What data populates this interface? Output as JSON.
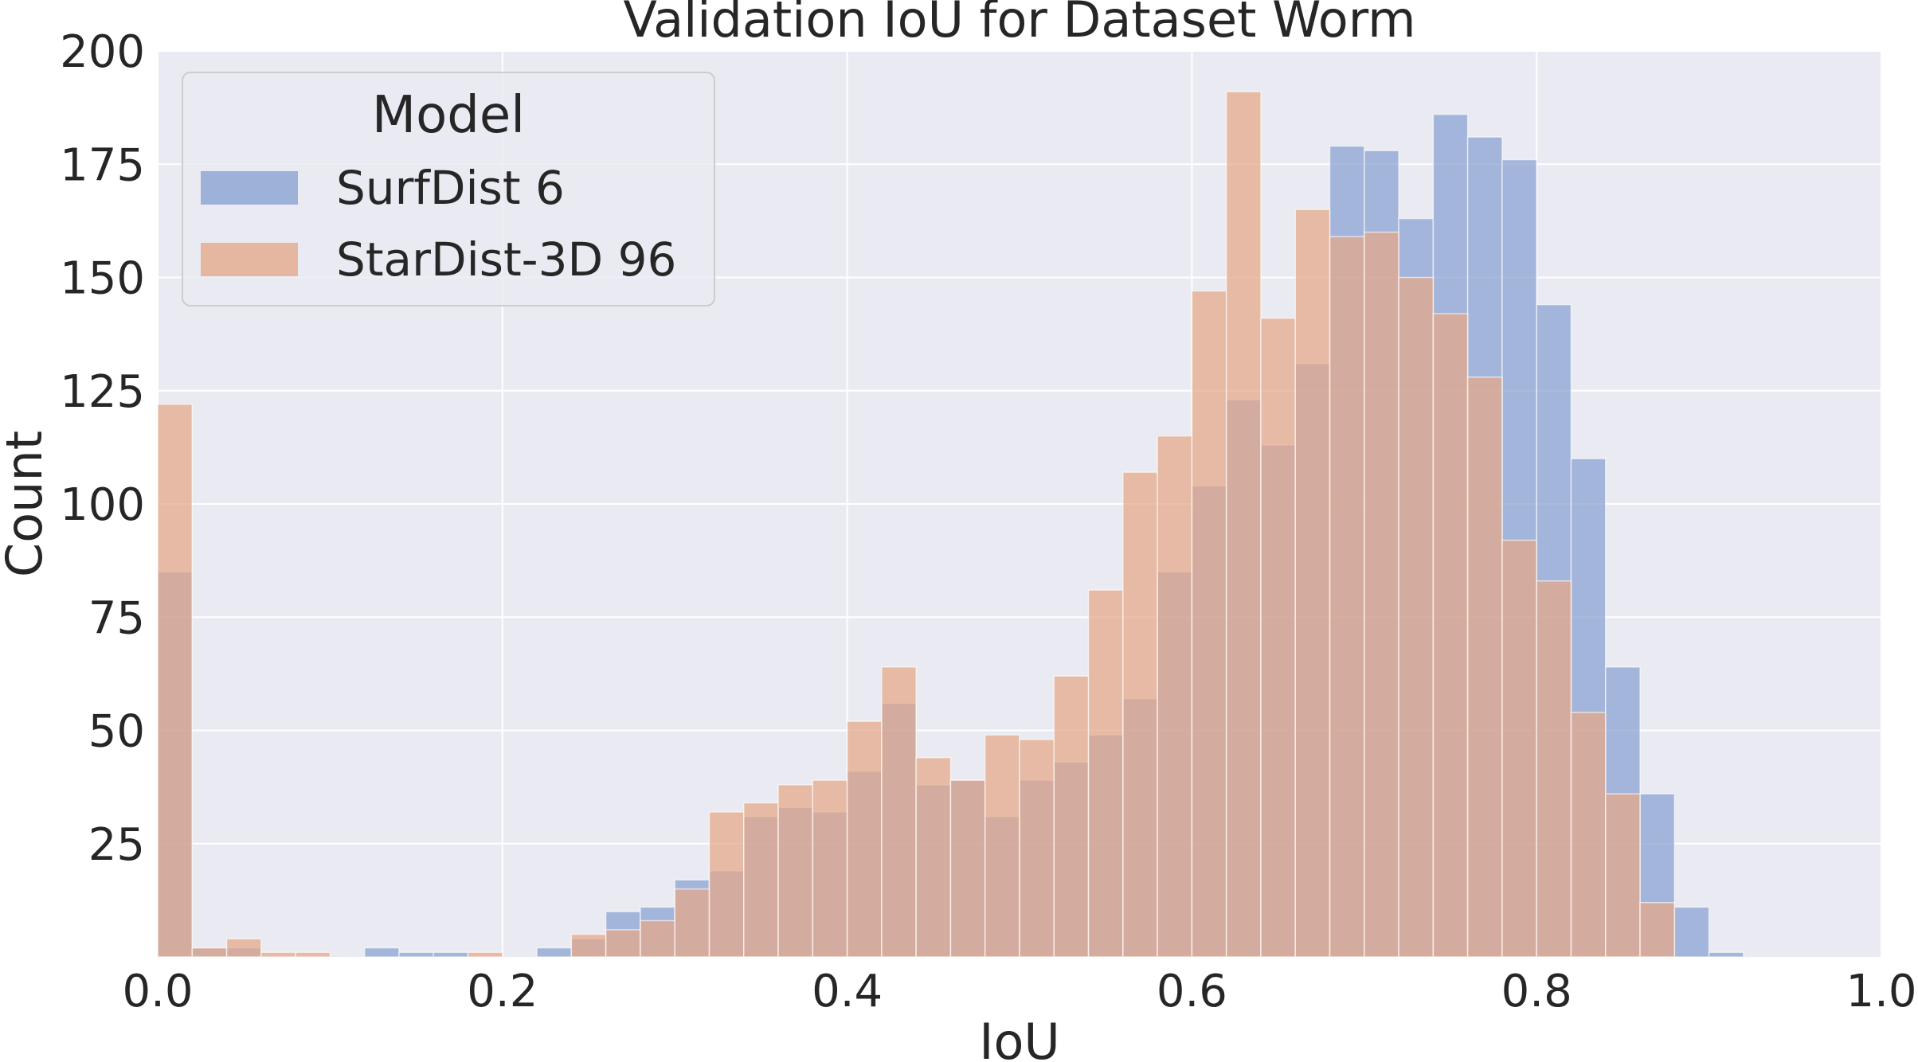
{
  "chart_data": {
    "type": "bar",
    "subtype": "histogram-overlay",
    "title": "Validation IoU for Dataset Worm",
    "xlabel": "IoU",
    "ylabel": "Count",
    "xlim": [
      0.0,
      1.0
    ],
    "ylim": [
      0,
      200
    ],
    "x_ticks": [
      "0.0",
      "0.2",
      "0.4",
      "0.6",
      "0.8",
      "1.0"
    ],
    "y_ticks": [
      "25",
      "50",
      "75",
      "100",
      "125",
      "150",
      "175",
      "200"
    ],
    "grid": true,
    "legend": {
      "title": "Model",
      "placement": "top-left"
    },
    "bin_width": 0.02,
    "bin_starts": [
      0.0,
      0.02,
      0.04,
      0.06,
      0.08,
      0.1,
      0.12,
      0.14,
      0.16,
      0.18,
      0.2,
      0.22,
      0.24,
      0.26,
      0.28,
      0.3,
      0.32,
      0.34,
      0.36,
      0.38,
      0.4,
      0.42,
      0.44,
      0.46,
      0.48,
      0.5,
      0.52,
      0.54,
      0.56,
      0.58,
      0.6,
      0.62,
      0.64,
      0.66,
      0.68,
      0.7,
      0.72,
      0.74,
      0.76,
      0.78,
      0.8,
      0.82,
      0.84,
      0.86,
      0.88,
      0.9
    ],
    "series": [
      {
        "name": "SurfDist 6",
        "color": "#8ba3d2",
        "values": [
          85,
          2,
          2,
          0,
          0,
          0,
          2,
          1,
          1,
          0,
          0,
          2,
          4,
          10,
          11,
          17,
          19,
          31,
          33,
          32,
          41,
          56,
          38,
          39,
          31,
          39,
          43,
          49,
          57,
          85,
          104,
          123,
          113,
          131,
          179,
          178,
          163,
          186,
          181,
          176,
          144,
          110,
          64,
          36,
          11,
          1
        ]
      },
      {
        "name": "StarDist-3D 96",
        "color": "#e4a98b",
        "values": [
          122,
          2,
          4,
          1,
          1,
          0,
          0,
          0,
          0,
          1,
          0,
          0,
          5,
          6,
          8,
          15,
          32,
          34,
          38,
          39,
          52,
          64,
          44,
          39,
          49,
          48,
          62,
          81,
          107,
          115,
          147,
          191,
          141,
          165,
          159,
          160,
          150,
          142,
          128,
          92,
          83,
          54,
          36,
          12,
          0,
          0
        ]
      }
    ]
  }
}
